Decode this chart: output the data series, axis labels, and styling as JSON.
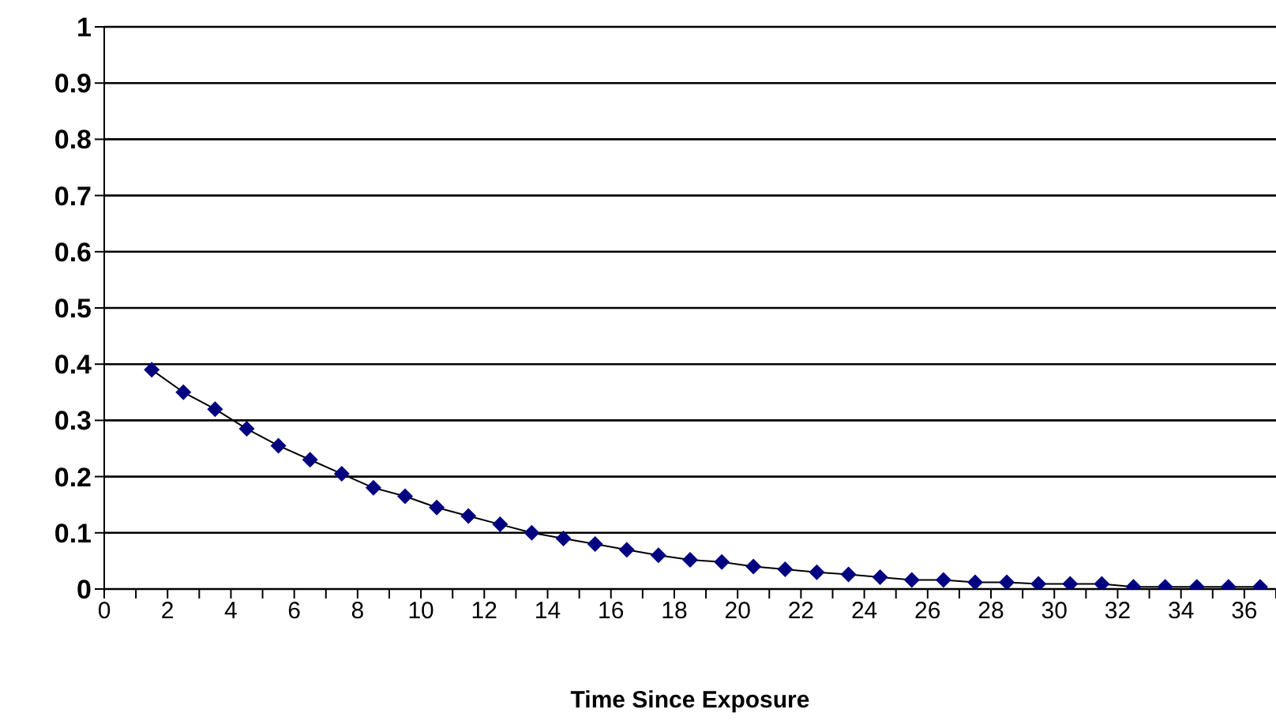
{
  "chart_data": {
    "type": "line",
    "xlabel": "Time Since Exposure",
    "x": [
      1.5,
      2.5,
      3.5,
      4.5,
      5.5,
      6.5,
      7.5,
      8.5,
      9.5,
      10.5,
      11.5,
      12.5,
      13.5,
      14.5,
      15.5,
      16.5,
      17.5,
      18.5,
      19.5,
      20.5,
      21.5,
      22.5,
      23.5,
      24.5,
      25.5,
      26.5,
      27.5,
      28.5,
      29.5,
      30.5,
      31.5,
      32.5,
      33.5,
      34.5,
      35.5,
      36.5
    ],
    "series": [
      {
        "color": "#000080",
        "values": [
          0.39,
          0.35,
          0.32,
          0.285,
          0.255,
          0.23,
          0.205,
          0.18,
          0.165,
          0.145,
          0.13,
          0.115,
          0.1,
          0.09,
          0.08,
          0.07,
          0.06,
          0.052,
          0.048,
          0.04,
          0.035,
          0.03,
          0.026,
          0.021,
          0.016,
          0.016,
          0.012,
          0.012,
          0.009,
          0.009,
          0.009,
          0.004,
          0.004,
          0.004,
          0.004,
          0.004
        ]
      }
    ],
    "xlim": [
      0,
      37
    ],
    "xticks": [
      0,
      {
        "value": 1,
        "label": null
      },
      2,
      {
        "value": 3,
        "label": null
      },
      4,
      {
        "value": 5,
        "label": null
      },
      6,
      {
        "value": 7,
        "label": null
      },
      8,
      {
        "value": 9,
        "label": null
      },
      10,
      {
        "value": 11,
        "label": null
      },
      12,
      {
        "value": 13,
        "label": null
      },
      14,
      {
        "value": 15,
        "label": null
      },
      16,
      {
        "value": 17,
        "label": null
      },
      18,
      {
        "value": 19,
        "label": null
      },
      20,
      {
        "value": 21,
        "label": null
      },
      22,
      {
        "value": 23,
        "label": null
      },
      24,
      {
        "value": 25,
        "label": null
      },
      26,
      {
        "value": 27,
        "label": null
      },
      28,
      {
        "value": 29,
        "label": null
      },
      30,
      {
        "value": 31,
        "label": null
      },
      32,
      {
        "value": 33,
        "label": null
      },
      34,
      {
        "value": 35,
        "label": null
      },
      36,
      {
        "value": 37,
        "label": null
      }
    ],
    "ylim": [
      0,
      1
    ],
    "yticks": [
      0,
      0.1,
      0.2,
      0.3,
      0.4,
      0.5,
      0.6,
      0.7,
      0.8,
      0.9,
      1
    ],
    "grid": "y",
    "marker": "diamond",
    "line_style": "solid",
    "legend": false
  }
}
